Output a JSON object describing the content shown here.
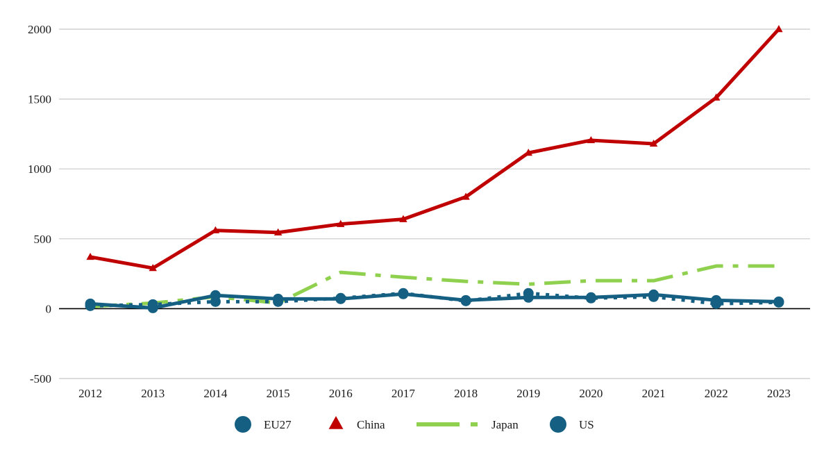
{
  "chart_data": {
    "type": "line",
    "title": "",
    "xlabel": "",
    "ylabel": "",
    "categories": [
      "2012",
      "2013",
      "2014",
      "2015",
      "2016",
      "2017",
      "2018",
      "2019",
      "2020",
      "2021",
      "2022",
      "2023"
    ],
    "ylim": [
      -500,
      2000
    ],
    "yticks": [
      -500,
      0,
      500,
      1000,
      1500,
      2000
    ],
    "grid": true,
    "legend_position": "bottom",
    "series": [
      {
        "name": "EU27",
        "values": [
          20,
          30,
          50,
          50,
          75,
          110,
          55,
          110,
          75,
          85,
          35,
          45
        ],
        "color": "#155f82",
        "style": "dotted",
        "marker": "circle"
      },
      {
        "name": "China",
        "values": [
          370,
          290,
          560,
          545,
          605,
          640,
          800,
          1115,
          1205,
          1180,
          1510,
          2000
        ],
        "color": "#c00000",
        "style": "solid",
        "marker": "triangle"
      },
      {
        "name": "Japan",
        "values": [
          15,
          40,
          85,
          40,
          260,
          225,
          195,
          175,
          200,
          200,
          305,
          305
        ],
        "color": "#8fd14f",
        "style": "dashdot",
        "marker": "none"
      },
      {
        "name": "US",
        "values": [
          35,
          5,
          95,
          70,
          70,
          105,
          60,
          80,
          80,
          100,
          60,
          50
        ],
        "color": "#155f82",
        "style": "solid",
        "marker": "circle"
      }
    ]
  }
}
